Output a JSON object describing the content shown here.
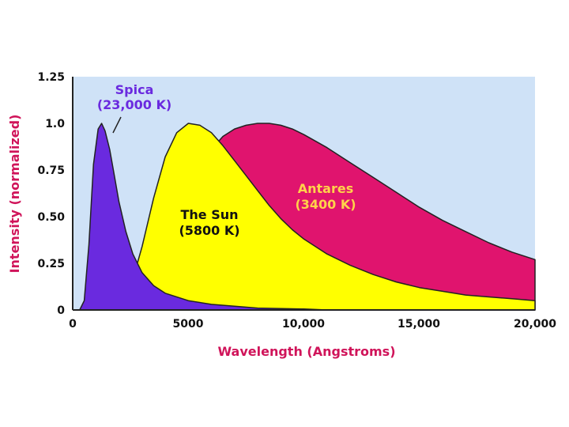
{
  "chart_data": {
    "type": "area",
    "xlabel": "Wavelength (Angstroms)",
    "ylabel": "Intensity (normalized)",
    "xlim": [
      0,
      20000
    ],
    "ylim": [
      0,
      1.25
    ],
    "x_ticks": [
      "0",
      "5000",
      "10,000",
      "15,000",
      "20,000"
    ],
    "y_ticks": [
      "0",
      "0.25",
      "0.50",
      "0.75",
      "1.0",
      "1.25"
    ],
    "grid": false,
    "background_color": "#cfe2f7",
    "series": [
      {
        "name": "Antares (3400 K)",
        "label_line1": "Antares",
        "label_line2": "(3400 K)",
        "color": "#e0146e",
        "label_color": "#ffd24a",
        "label_at": [
          12500,
          0.58
        ],
        "points": [
          [
            2500,
            0
          ],
          [
            3000,
            0.02
          ],
          [
            3500,
            0.08
          ],
          [
            4000,
            0.22
          ],
          [
            4500,
            0.42
          ],
          [
            5000,
            0.62
          ],
          [
            5500,
            0.76
          ],
          [
            6000,
            0.86
          ],
          [
            6500,
            0.93
          ],
          [
            7000,
            0.97
          ],
          [
            7500,
            0.99
          ],
          [
            8000,
            1.0
          ],
          [
            8500,
            1.0
          ],
          [
            9000,
            0.99
          ],
          [
            9500,
            0.97
          ],
          [
            10000,
            0.94
          ],
          [
            11000,
            0.87
          ],
          [
            12000,
            0.79
          ],
          [
            13000,
            0.71
          ],
          [
            14000,
            0.63
          ],
          [
            15000,
            0.55
          ],
          [
            16000,
            0.48
          ],
          [
            17000,
            0.42
          ],
          [
            18000,
            0.36
          ],
          [
            19000,
            0.31
          ],
          [
            20000,
            0.27
          ]
        ]
      },
      {
        "name": "The Sun (5800 K)",
        "label_line1": "The Sun",
        "label_line2": "(5800 K)",
        "color": "#ffff00",
        "label_color": "#111111",
        "label_at": [
          6200,
          0.46
        ],
        "points": [
          [
            1500,
            0
          ],
          [
            2000,
            0.02
          ],
          [
            2500,
            0.12
          ],
          [
            3000,
            0.34
          ],
          [
            3500,
            0.6
          ],
          [
            4000,
            0.82
          ],
          [
            4500,
            0.95
          ],
          [
            5000,
            1.0
          ],
          [
            5500,
            0.99
          ],
          [
            6000,
            0.95
          ],
          [
            6500,
            0.88
          ],
          [
            7000,
            0.8
          ],
          [
            7500,
            0.72
          ],
          [
            8000,
            0.64
          ],
          [
            8500,
            0.56
          ],
          [
            9000,
            0.49
          ],
          [
            9500,
            0.43
          ],
          [
            10000,
            0.38
          ],
          [
            11000,
            0.3
          ],
          [
            12000,
            0.24
          ],
          [
            13000,
            0.19
          ],
          [
            14000,
            0.15
          ],
          [
            15000,
            0.12
          ],
          [
            16000,
            0.1
          ],
          [
            17000,
            0.08
          ],
          [
            18000,
            0.07
          ],
          [
            19000,
            0.06
          ],
          [
            20000,
            0.05
          ]
        ]
      },
      {
        "name": "Spica (23,000 K)",
        "label_line1": "Spica",
        "label_line2": "(23,000 K)",
        "color": "#6a2adf",
        "label_color": "#6a2adf",
        "label_at": [
          3600,
          1.13
        ],
        "points": [
          [
            300,
            0
          ],
          [
            500,
            0.05
          ],
          [
            700,
            0.35
          ],
          [
            900,
            0.78
          ],
          [
            1100,
            0.97
          ],
          [
            1250,
            1.0
          ],
          [
            1400,
            0.96
          ],
          [
            1600,
            0.86
          ],
          [
            1800,
            0.72
          ],
          [
            2000,
            0.58
          ],
          [
            2300,
            0.42
          ],
          [
            2600,
            0.3
          ],
          [
            3000,
            0.2
          ],
          [
            3500,
            0.13
          ],
          [
            4000,
            0.09
          ],
          [
            5000,
            0.05
          ],
          [
            6000,
            0.03
          ],
          [
            8000,
            0.01
          ],
          [
            10000,
            0.005
          ],
          [
            11000,
            0
          ]
        ]
      }
    ]
  }
}
